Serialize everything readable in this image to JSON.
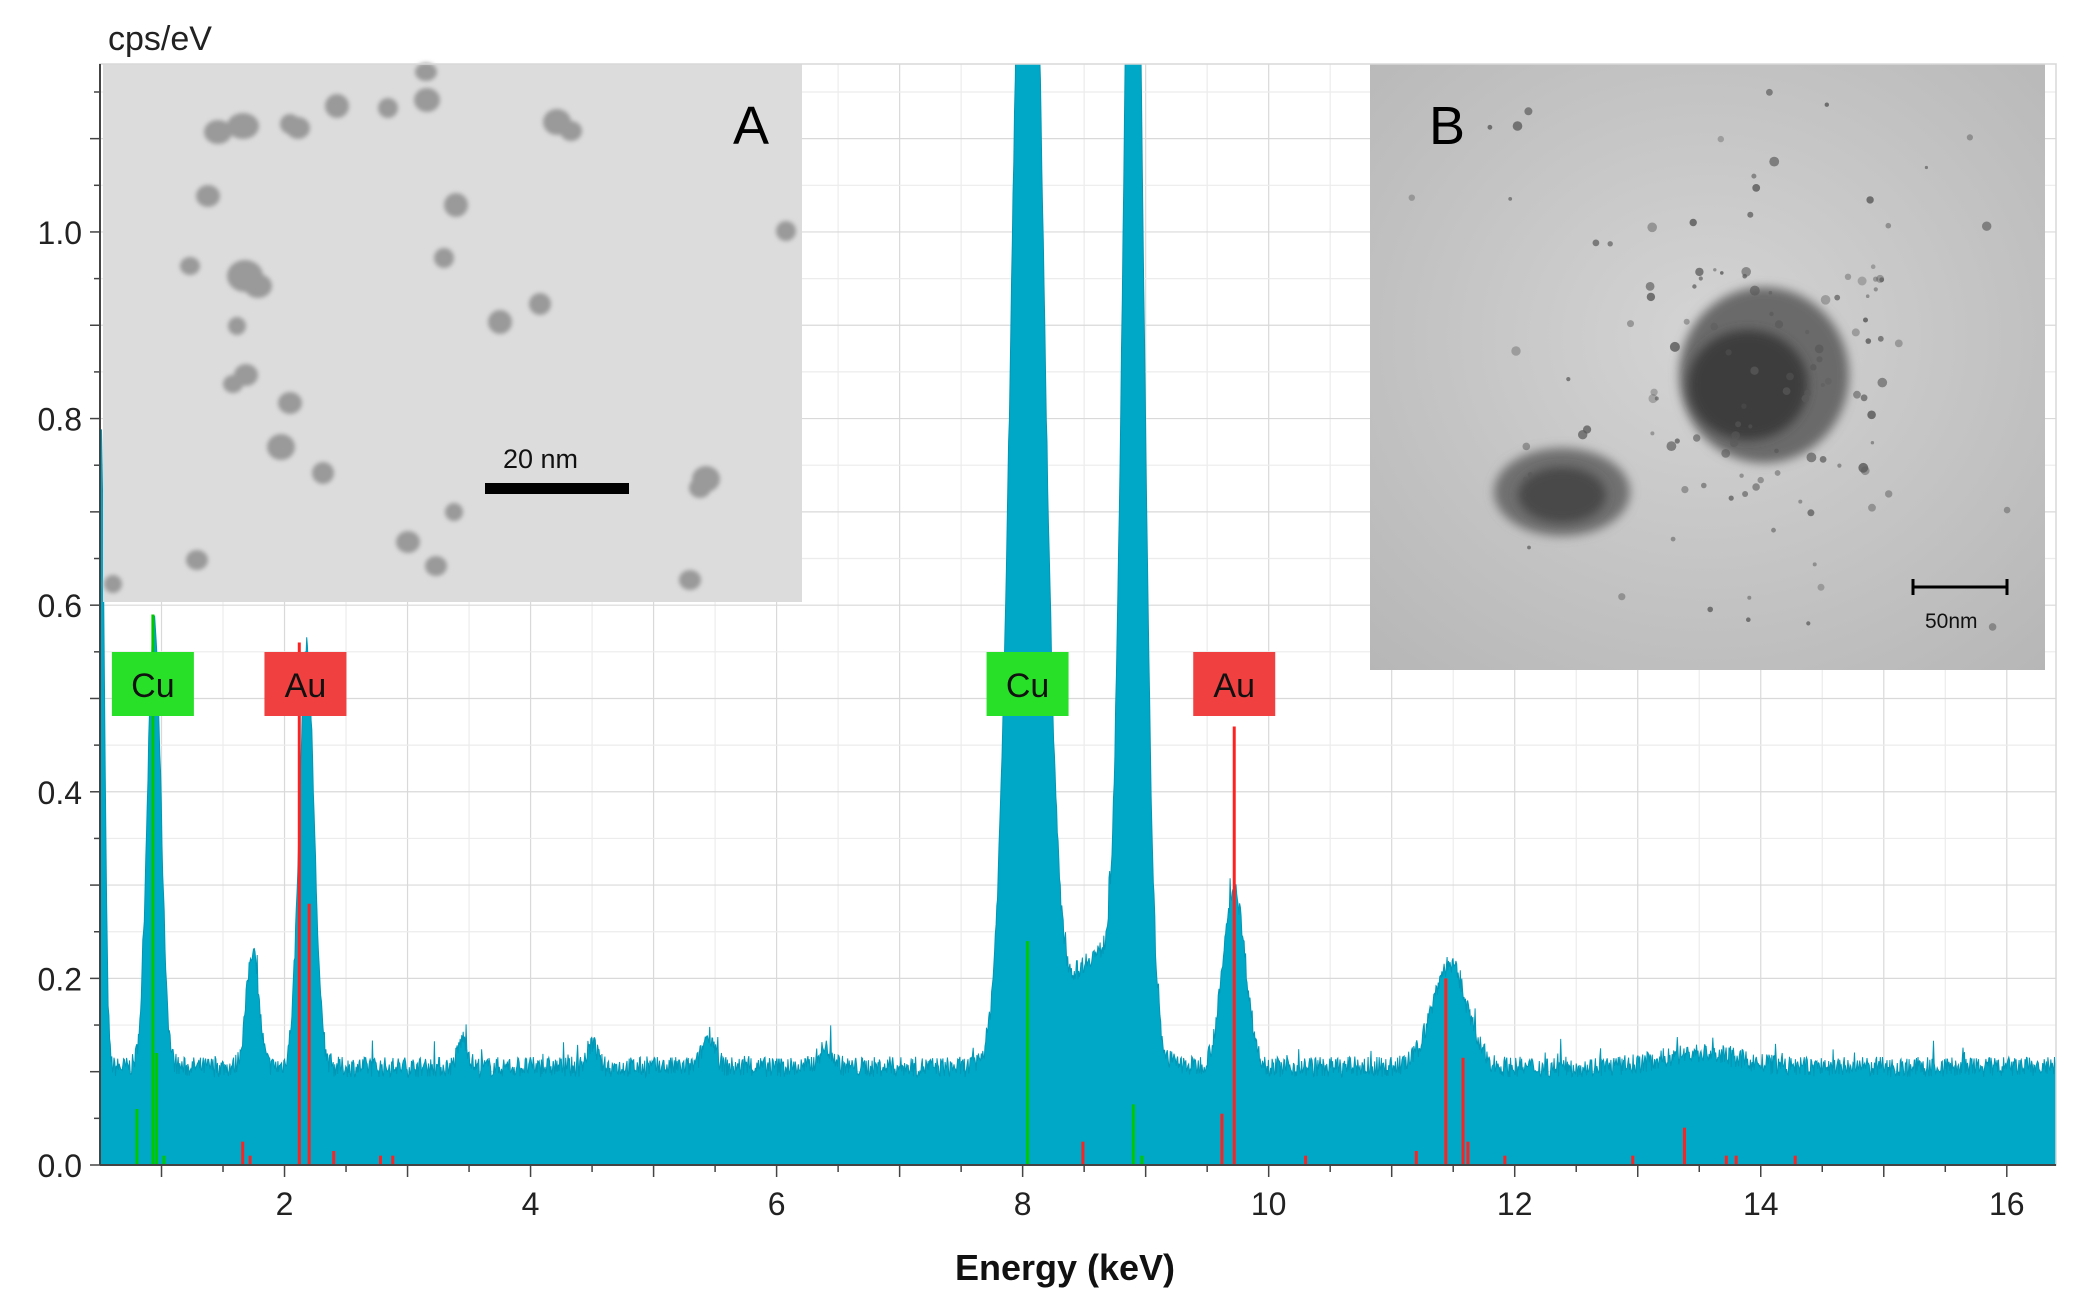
{
  "chart_data": {
    "type": "area",
    "title": "",
    "ylabel": "cps/eV",
    "xlabel": "Energy  (keV)",
    "xlim": [
      0.5,
      16.4
    ],
    "ylim": [
      0.0,
      1.18
    ],
    "grid": true,
    "x_ticks": [
      2,
      4,
      6,
      8,
      10,
      12,
      14,
      16
    ],
    "x_tick_labels": [
      "2",
      "4",
      "6",
      "8",
      "10",
      "12",
      "14",
      "16"
    ],
    "y_ticks": [
      0.0,
      0.2,
      0.4,
      0.6,
      0.8,
      1.0
    ],
    "y_tick_labels": [
      "0.0",
      "0.2",
      "0.4",
      "0.6",
      "0.8",
      "1.0"
    ],
    "series_color": "#00a8c8",
    "spectrum": {
      "baseline": 0.105,
      "peaks": [
        {
          "x": 0.52,
          "height": 0.4,
          "width": 0.025
        },
        {
          "x": 0.94,
          "height": 0.48,
          "width": 0.055
        },
        {
          "x": 1.74,
          "height": 0.125,
          "width": 0.05
        },
        {
          "x": 2.18,
          "height": 0.45,
          "width": 0.06
        },
        {
          "x": 3.45,
          "height": 0.03,
          "width": 0.04
        },
        {
          "x": 4.5,
          "height": 0.025,
          "width": 0.04
        },
        {
          "x": 5.45,
          "height": 0.035,
          "width": 0.05
        },
        {
          "x": 6.4,
          "height": 0.02,
          "width": 0.06
        },
        {
          "x": 8.04,
          "height": 1.5,
          "width": 0.12
        },
        {
          "x": 8.9,
          "height": 1.4,
          "width": 0.08
        },
        {
          "x": 8.6,
          "height": 0.12,
          "width": 0.25
        },
        {
          "x": 9.72,
          "height": 0.19,
          "width": 0.09
        },
        {
          "x": 11.47,
          "height": 0.11,
          "width": 0.14
        },
        {
          "x": 13.5,
          "height": 0.015,
          "width": 0.3
        }
      ]
    },
    "element_lines": [
      {
        "element": "Cu",
        "color": "#00c800",
        "lines": [
          [
            0.8,
            0.06
          ],
          [
            0.93,
            0.59
          ],
          [
            0.96,
            0.12
          ],
          [
            1.02,
            0.01
          ],
          [
            8.04,
            0.24
          ],
          [
            8.9,
            0.065
          ],
          [
            8.97,
            0.01
          ]
        ]
      },
      {
        "element": "Au",
        "color": "#ff2020",
        "lines": [
          [
            1.66,
            0.025
          ],
          [
            1.72,
            0.01
          ],
          [
            2.12,
            0.56
          ],
          [
            2.2,
            0.28
          ],
          [
            2.4,
            0.015
          ],
          [
            2.78,
            0.01
          ],
          [
            2.88,
            0.01
          ],
          [
            8.49,
            0.025
          ],
          [
            9.62,
            0.055
          ],
          [
            9.72,
            0.47
          ],
          [
            10.3,
            0.01
          ],
          [
            11.2,
            0.015
          ],
          [
            11.44,
            0.2
          ],
          [
            11.58,
            0.115
          ],
          [
            11.62,
            0.025
          ],
          [
            11.92,
            0.01
          ],
          [
            12.96,
            0.01
          ],
          [
            13.38,
            0.04
          ],
          [
            13.72,
            0.01
          ],
          [
            13.8,
            0.01
          ],
          [
            14.28,
            0.01
          ]
        ]
      }
    ],
    "markers": [
      {
        "label": "Cu",
        "x": 0.93,
        "color": "#28e028"
      },
      {
        "label": "Au",
        "x": 2.17,
        "color": "#f04040"
      },
      {
        "label": "Cu",
        "x": 8.04,
        "color": "#28e028"
      },
      {
        "label": "Au",
        "x": 9.72,
        "color": "#f04040"
      }
    ]
  },
  "insets": {
    "a": {
      "letter": "A",
      "scale_label": "20 nm",
      "background": "#dcdcdc"
    },
    "b": {
      "letter": "B",
      "scale_label": "50nm",
      "background": "#c9c9c9"
    }
  }
}
